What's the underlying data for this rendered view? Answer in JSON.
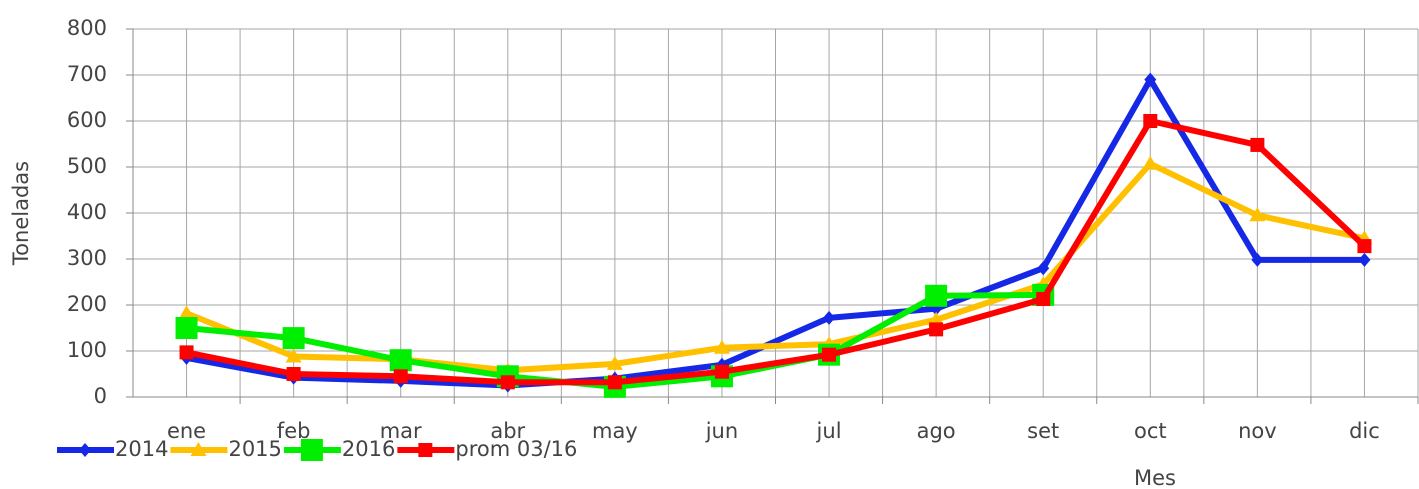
{
  "chart_data": {
    "type": "line",
    "x_label": "Mes",
    "y_label": "Toneladas",
    "categories": [
      "ene",
      "feb",
      "mar",
      "abr",
      "may",
      "jun",
      "jul",
      "ago",
      "set",
      "oct",
      "nov",
      "dic"
    ],
    "series": [
      {
        "name": "2014",
        "color": "#1428e6",
        "marker": "diamond",
        "values": [
          85,
          42,
          35,
          25,
          40,
          70,
          172,
          192,
          280,
          690,
          298,
          298
        ]
      },
      {
        "name": "2015",
        "color": "#ffc000",
        "marker": "triangle",
        "values": [
          182,
          88,
          82,
          58,
          72,
          107,
          115,
          168,
          245,
          507,
          395,
          345
        ]
      },
      {
        "name": "2016",
        "color": "#00ee00",
        "marker": "square",
        "values": [
          150,
          128,
          80,
          45,
          22,
          45,
          92,
          220,
          222,
          null,
          null,
          null
        ]
      },
      {
        "name": "prom 03/16",
        "color": "#ff0000",
        "marker": "small-square",
        "values": [
          97,
          50,
          45,
          32,
          32,
          55,
          92,
          147,
          213,
          600,
          548,
          328
        ]
      }
    ],
    "ylim": [
      0,
      800
    ],
    "yticks": [
      0,
      100,
      200,
      300,
      400,
      500,
      600,
      700,
      800
    ],
    "grid": true
  }
}
